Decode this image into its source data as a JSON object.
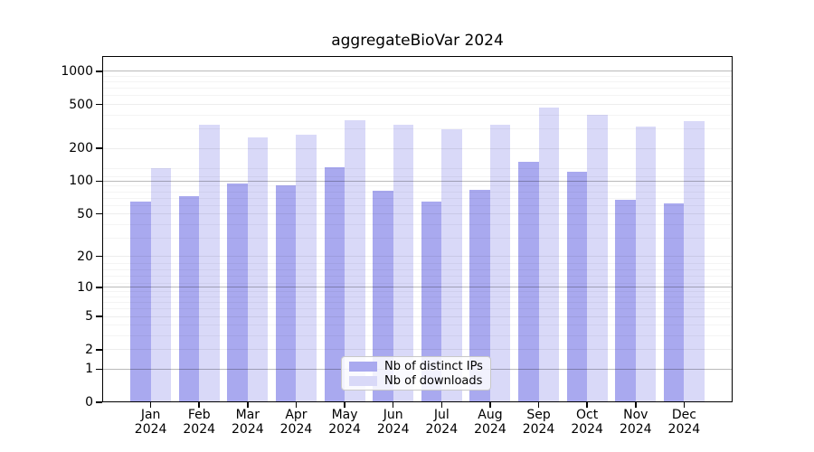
{
  "title": "aggregateBioVar 2024",
  "chart_data": {
    "type": "bar",
    "title": "aggregateBioVar 2024",
    "categories": [
      "Jan 2024",
      "Feb 2024",
      "Mar 2024",
      "Apr 2024",
      "May 2024",
      "Jun 2024",
      "Jul 2024",
      "Aug 2024",
      "Sep 2024",
      "Oct 2024",
      "Nov 2024",
      "Dec 2024"
    ],
    "series": [
      {
        "name": "Nb of distinct IPs",
        "color": "#a9a9ef",
        "values": [
          65,
          73,
          95,
          91,
          134,
          82,
          65,
          83,
          151,
          122,
          68,
          63
        ]
      },
      {
        "name": "Nb of downloads",
        "color": "#d9d9f8",
        "values": [
          132,
          327,
          253,
          266,
          360,
          326,
          298,
          327,
          469,
          403,
          315,
          355
        ]
      }
    ],
    "xlabel": "",
    "ylabel": "",
    "y_scale": "log10(value+1)",
    "y_ticks": [
      0,
      1,
      2,
      5,
      10,
      20,
      50,
      100,
      200,
      500,
      1000
    ],
    "y_minor_gridlines": [
      3,
      4,
      6,
      7,
      8,
      9,
      11,
      13,
      15,
      17,
      30,
      40,
      60,
      70,
      80,
      90,
      110,
      130,
      300,
      400,
      600,
      700,
      800,
      900
    ],
    "ylim": [
      0,
      1377
    ],
    "grid": true,
    "legend_position": "lower center",
    "colors": {
      "gridline_pow10": "rgba(0,0,0,0.27)",
      "gridline_major": "rgba(0,0,0,0.07)",
      "gridline_minor": "rgba(0,0,0,0.045)",
      "axis": "#000000",
      "background": "#ffffff"
    }
  }
}
